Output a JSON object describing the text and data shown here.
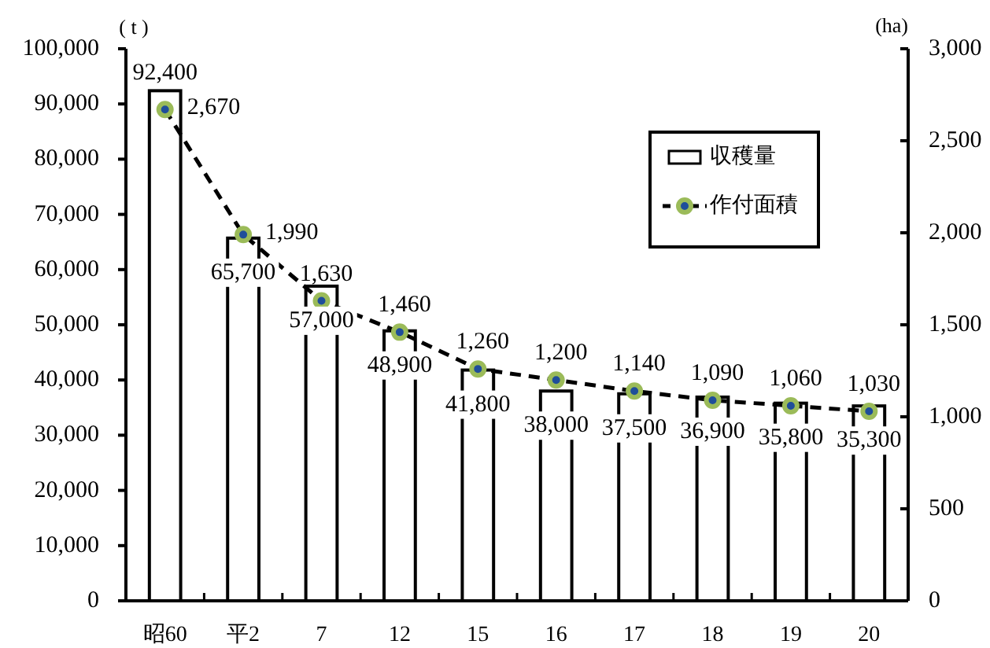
{
  "chart_data": {
    "type": "bar",
    "ylabel": "( t )",
    "y2label": "(ha)",
    "categories": [
      "昭60",
      "平2",
      "7",
      "12",
      "15",
      "16",
      "17",
      "18",
      "19",
      "20"
    ],
    "series": [
      {
        "name": "収穫量",
        "color": "#ffffff",
        "values": [
          92400,
          65700,
          57000,
          48900,
          41800,
          38000,
          37500,
          36900,
          35800,
          35300
        ],
        "value_labels": [
          "92,400",
          "65,700",
          "57,000",
          "48,900",
          "41,800",
          "38,000",
          "37,500",
          "36,900",
          "35,800",
          "35,300"
        ]
      },
      {
        "name": "作付面積",
        "type": "line",
        "axis": "y2",
        "color": "#9bbb59",
        "values": [
          2670,
          1990,
          1630,
          1460,
          1260,
          1200,
          1140,
          1090,
          1060,
          1030
        ],
        "value_labels": [
          "2,670",
          "1,990",
          "1,630",
          "1,460",
          "1,260",
          "1,200",
          "1,140",
          "1,090",
          "1,060",
          "1,030"
        ]
      }
    ],
    "ylim": [
      0,
      100000
    ],
    "yticks": [
      0,
      {
        "value": 10000,
        "label": "10,000"
      },
      {
        "value": 20000,
        "label": "20,000"
      },
      {
        "value": 30000,
        "label": "30,000"
      },
      {
        "value": 40000,
        "label": "40,000"
      },
      {
        "value": 50000,
        "label": "50,000"
      },
      {
        "value": 60000,
        "label": "60,000"
      },
      {
        "value": 70000,
        "label": "70,000"
      },
      {
        "value": 80000,
        "label": "80,000"
      },
      {
        "value": 90000,
        "label": "90,000"
      },
      {
        "value": 100000,
        "label": "100,000"
      }
    ],
    "y2lim": [
      0,
      3000
    ],
    "y2ticks": [
      0,
      500,
      {
        "value": 1000,
        "label": "1,000"
      },
      {
        "value": 1500,
        "label": "1,500"
      },
      {
        "value": 2000,
        "label": "2,000"
      },
      {
        "value": 2500,
        "label": "2,500"
      },
      {
        "value": 3000,
        "label": "3,000"
      }
    ],
    "legend": "top right",
    "marker": "circle",
    "line_style": "dashed"
  }
}
